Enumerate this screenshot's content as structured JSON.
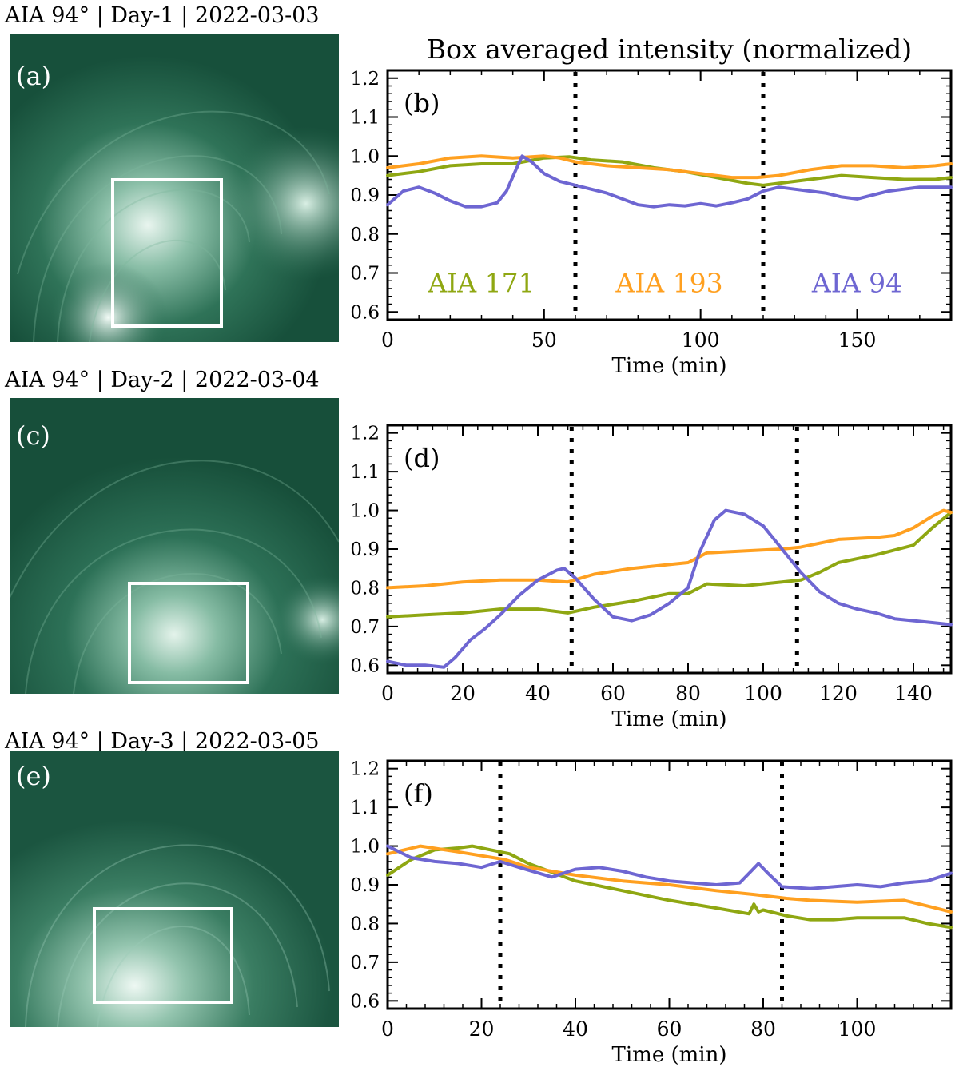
{
  "figure": {
    "title": "Box averaged intensity (normalized)"
  },
  "colors": {
    "aia171": "#8fa712",
    "aia193": "#ffa020",
    "aia94": "#6e66d2"
  },
  "rows": [
    {
      "label": "AIA 94° | Day-1 | 2022-03-03",
      "image_label": "(a)",
      "plot_label": "(b)"
    },
    {
      "label": "AIA 94° | Day-2 | 2022-03-04",
      "image_label": "(c)",
      "plot_label": "(d)"
    },
    {
      "label": "AIA 94° | Day-3 | 2022-03-05",
      "image_label": "(e)",
      "plot_label": "(f)"
    }
  ],
  "chart_data": [
    {
      "type": "line",
      "panel": "(b)",
      "xlabel": "Time (min)",
      "ylabel": "",
      "xlim": [
        0,
        180
      ],
      "ylim": [
        0.58,
        1.22
      ],
      "xticks": [
        0,
        50,
        100,
        150
      ],
      "yticks": [
        0.6,
        0.7,
        0.8,
        0.9,
        1.0,
        1.1,
        1.2
      ],
      "vlines": [
        60,
        120
      ],
      "annotations": [
        {
          "text": "AIA 171",
          "x": 30,
          "y": 0.675,
          "color": "#8fa712"
        },
        {
          "text": "AIA 193",
          "x": 90,
          "y": 0.675,
          "color": "#ffa020"
        },
        {
          "text": "AIA 94",
          "x": 150,
          "y": 0.675,
          "color": "#6e66d2"
        }
      ],
      "series": [
        {
          "name": "AIA 171",
          "color": "#8fa712",
          "x": [
            0,
            10,
            20,
            30,
            40,
            50,
            58,
            65,
            75,
            85,
            95,
            105,
            115,
            120,
            125,
            135,
            145,
            155,
            165,
            175,
            180
          ],
          "y": [
            0.95,
            0.96,
            0.975,
            0.98,
            0.98,
            0.995,
            0.998,
            0.99,
            0.985,
            0.97,
            0.96,
            0.945,
            0.93,
            0.925,
            0.93,
            0.94,
            0.95,
            0.945,
            0.94,
            0.94,
            0.945
          ]
        },
        {
          "name": "AIA 193",
          "color": "#ffa020",
          "x": [
            0,
            10,
            20,
            30,
            40,
            50,
            55,
            60,
            70,
            80,
            90,
            100,
            110,
            118,
            125,
            135,
            145,
            155,
            165,
            175,
            180
          ],
          "y": [
            0.97,
            0.98,
            0.995,
            1.0,
            0.995,
            1.0,
            0.995,
            0.985,
            0.975,
            0.97,
            0.965,
            0.955,
            0.945,
            0.945,
            0.95,
            0.965,
            0.975,
            0.975,
            0.97,
            0.975,
            0.98
          ]
        },
        {
          "name": "AIA 94",
          "color": "#6e66d2",
          "x": [
            0,
            5,
            10,
            15,
            20,
            25,
            30,
            35,
            38,
            41,
            43,
            46,
            50,
            55,
            60,
            65,
            70,
            75,
            80,
            85,
            90,
            95,
            100,
            105,
            110,
            115,
            120,
            125,
            130,
            135,
            140,
            145,
            150,
            155,
            160,
            165,
            170,
            175,
            180
          ],
          "y": [
            0.875,
            0.91,
            0.92,
            0.905,
            0.885,
            0.87,
            0.87,
            0.88,
            0.91,
            0.965,
            1.0,
            0.985,
            0.955,
            0.935,
            0.925,
            0.915,
            0.905,
            0.89,
            0.875,
            0.87,
            0.875,
            0.872,
            0.878,
            0.872,
            0.88,
            0.89,
            0.91,
            0.92,
            0.915,
            0.91,
            0.905,
            0.895,
            0.89,
            0.9,
            0.91,
            0.915,
            0.92,
            0.92,
            0.92
          ]
        }
      ]
    },
    {
      "type": "line",
      "panel": "(d)",
      "xlabel": "Time (min)",
      "ylabel": "",
      "xlim": [
        0,
        150
      ],
      "ylim": [
        0.58,
        1.22
      ],
      "xticks": [
        0,
        20,
        40,
        60,
        80,
        100,
        120,
        140
      ],
      "yticks": [
        0.6,
        0.7,
        0.8,
        0.9,
        1.0,
        1.1,
        1.2
      ],
      "vlines": [
        49,
        109
      ],
      "annotations": [],
      "series": [
        {
          "name": "AIA 171",
          "color": "#8fa712",
          "x": [
            0,
            10,
            20,
            30,
            40,
            48,
            55,
            65,
            75,
            80,
            85,
            95,
            105,
            110,
            115,
            120,
            125,
            130,
            140,
            145,
            150
          ],
          "y": [
            0.725,
            0.73,
            0.735,
            0.745,
            0.745,
            0.735,
            0.75,
            0.765,
            0.785,
            0.785,
            0.81,
            0.805,
            0.815,
            0.82,
            0.84,
            0.865,
            0.875,
            0.885,
            0.91,
            0.955,
            0.995
          ]
        },
        {
          "name": "AIA 193",
          "color": "#ffa020",
          "x": [
            0,
            10,
            20,
            30,
            40,
            48,
            55,
            65,
            75,
            80,
            85,
            95,
            105,
            110,
            120,
            130,
            135,
            140,
            145,
            148,
            150
          ],
          "y": [
            0.8,
            0.805,
            0.815,
            0.82,
            0.82,
            0.815,
            0.835,
            0.85,
            0.86,
            0.865,
            0.89,
            0.895,
            0.9,
            0.905,
            0.925,
            0.93,
            0.935,
            0.955,
            0.985,
            1.0,
            0.995
          ]
        },
        {
          "name": "AIA 94",
          "color": "#6e66d2",
          "x": [
            0,
            5,
            10,
            15,
            18,
            22,
            26,
            30,
            35,
            40,
            45,
            47,
            50,
            55,
            60,
            65,
            70,
            75,
            80,
            83,
            87,
            90,
            95,
            100,
            105,
            110,
            115,
            120,
            125,
            130,
            135,
            140,
            145,
            150
          ],
          "y": [
            0.61,
            0.6,
            0.6,
            0.595,
            0.62,
            0.665,
            0.695,
            0.73,
            0.78,
            0.82,
            0.845,
            0.85,
            0.825,
            0.77,
            0.725,
            0.715,
            0.73,
            0.76,
            0.8,
            0.89,
            0.975,
            1.0,
            0.99,
            0.96,
            0.9,
            0.84,
            0.79,
            0.76,
            0.745,
            0.735,
            0.72,
            0.715,
            0.71,
            0.705
          ]
        }
      ]
    },
    {
      "type": "line",
      "panel": "(f)",
      "xlabel": "Time (min)",
      "ylabel": "",
      "xlim": [
        0,
        120
      ],
      "ylim": [
        0.58,
        1.22
      ],
      "xticks": [
        0,
        20,
        40,
        60,
        80,
        100
      ],
      "yticks": [
        0.6,
        0.7,
        0.8,
        0.9,
        1.0,
        1.1,
        1.2
      ],
      "vlines": [
        24,
        84
      ],
      "annotations": [],
      "series": [
        {
          "name": "AIA 171",
          "color": "#8fa712",
          "x": [
            0,
            5,
            10,
            15,
            18,
            22,
            26,
            30,
            40,
            50,
            60,
            70,
            77,
            78,
            79,
            80,
            85,
            90,
            95,
            100,
            110,
            115,
            120
          ],
          "y": [
            0.925,
            0.965,
            0.99,
            0.995,
            1.0,
            0.99,
            0.98,
            0.955,
            0.91,
            0.885,
            0.86,
            0.84,
            0.825,
            0.85,
            0.83,
            0.835,
            0.82,
            0.81,
            0.81,
            0.815,
            0.815,
            0.8,
            0.79
          ]
        },
        {
          "name": "AIA 193",
          "color": "#ffa020",
          "x": [
            0,
            7,
            15,
            25,
            30,
            40,
            50,
            60,
            70,
            78,
            85,
            90,
            100,
            110,
            115,
            120
          ],
          "y": [
            0.98,
            1.0,
            0.985,
            0.965,
            0.945,
            0.925,
            0.91,
            0.9,
            0.885,
            0.875,
            0.865,
            0.86,
            0.855,
            0.86,
            0.845,
            0.83
          ]
        },
        {
          "name": "AIA 94",
          "color": "#6e66d2",
          "x": [
            0,
            5,
            10,
            15,
            20,
            24,
            28,
            35,
            40,
            45,
            50,
            55,
            60,
            65,
            70,
            75,
            77,
            79,
            81,
            84,
            90,
            95,
            100,
            105,
            110,
            115,
            120
          ],
          "y": [
            1.0,
            0.97,
            0.96,
            0.955,
            0.945,
            0.96,
            0.945,
            0.92,
            0.94,
            0.945,
            0.935,
            0.92,
            0.91,
            0.905,
            0.9,
            0.905,
            0.93,
            0.955,
            0.93,
            0.895,
            0.89,
            0.895,
            0.9,
            0.895,
            0.905,
            0.91,
            0.93
          ]
        }
      ]
    }
  ]
}
